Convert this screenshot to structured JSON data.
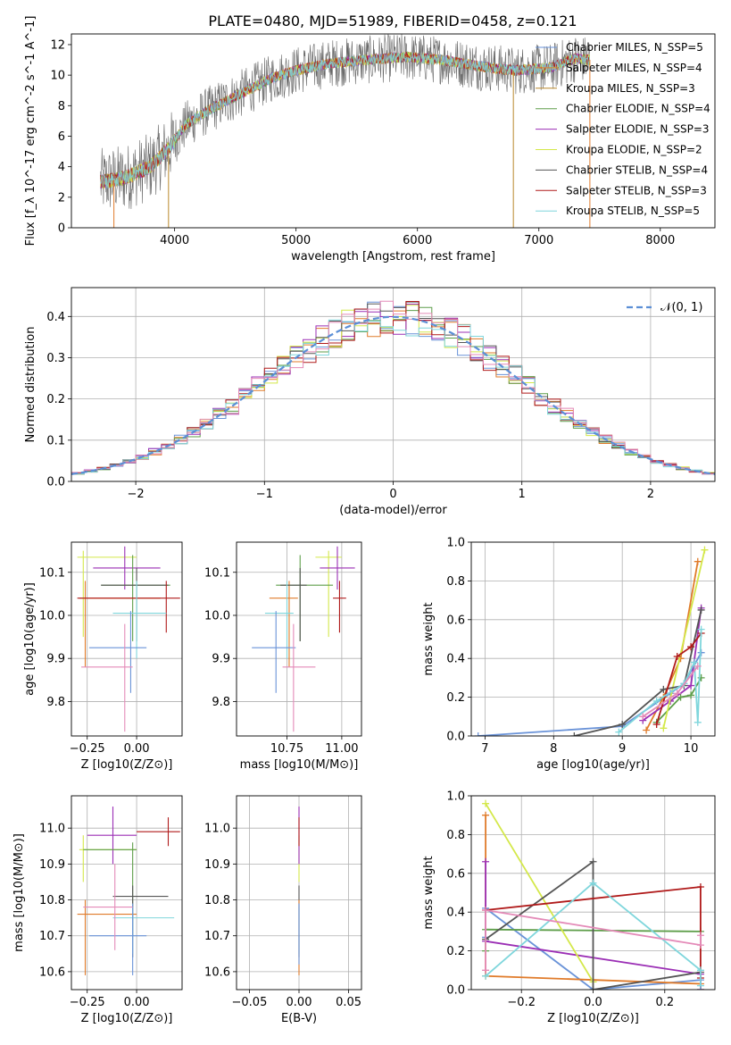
{
  "title": "PLATE=0480, MJD=51989, FIBERID=0458, z=0.121",
  "colors": {
    "chabrier_miles": "#6a93d8",
    "salpeter_miles": "#e07b2a",
    "kroupa_miles": "#b8872a",
    "chabrier_elodie": "#5e9e4a",
    "salpeter_elodie": "#9b2fb5",
    "kroupa_elodie": "#d4e84a",
    "chabrier_stelib": "#555555",
    "salpeter_stelib": "#b01a1a",
    "kroupa_stelib": "#7fd6dc",
    "pink": "#e48ab8",
    "normal": "#5b8fd6"
  },
  "chart_data": [
    {
      "type": "line",
      "title": "PLATE=0480, MJD=51989, FIBERID=0458, z=0.121",
      "xlabel": "wavelength [Angstrom, rest frame]",
      "ylabel": "Flux [f_λ 10^-17 erg cm^-2 s^-1 A^-1]",
      "xlim": [
        3150,
        8450
      ],
      "ylim": [
        0,
        12.7
      ],
      "xticks": [
        "4000",
        "5000",
        "6000",
        "7000",
        "8000"
      ],
      "yticks": [
        "0",
        "2",
        "4",
        "6",
        "8",
        "10",
        "12"
      ],
      "grid": false,
      "legend_position": "top-right",
      "legend": [
        "Chabrier MILES, N_SSP=5",
        "Salpeter MILES, N_SSP=4",
        "Kroupa MILES, N_SSP=3",
        "Chabrier ELODIE, N_SSP=4",
        "Salpeter ELODIE, N_SSP=3",
        "Kroupa ELODIE, N_SSP=2",
        "Chabrier STELIB, N_SSP=4",
        "Salpeter STELIB, N_SSP=3",
        "Kroupa STELIB, N_SSP=5"
      ],
      "continuum": {
        "x": [
          3400,
          3600,
          3800,
          3950,
          4100,
          4300,
          4500,
          4800,
          5000,
          5300,
          5600,
          5900,
          6200,
          6500,
          6800,
          7100,
          7300,
          7420
        ],
        "y": [
          3.0,
          3.3,
          4.0,
          5.2,
          6.8,
          7.8,
          8.6,
          9.8,
          10.3,
          10.8,
          11.0,
          11.2,
          11.0,
          10.6,
          10.3,
          10.5,
          11.1,
          11.0
        ]
      }
    },
    {
      "type": "histogram",
      "xlabel": "(data-model)/error",
      "ylabel": "Normed distribution",
      "xlim": [
        -2.5,
        2.5
      ],
      "ylim": [
        0,
        0.47
      ],
      "xticks": [
        "−2",
        "−1",
        "0",
        "1",
        "2"
      ],
      "yticks": [
        "0.0",
        "0.1",
        "0.2",
        "0.3",
        "0.4"
      ],
      "grid": true,
      "legend_position": "top-right",
      "legend": [
        "𝒩(0, 1)"
      ],
      "bin_width": 0.1
    },
    {
      "type": "scatter",
      "xlabel": "Z [log10(Z/Z⊙)]",
      "ylabel": "age  [log10(age/yr)]",
      "xlim": [
        -0.33,
        0.23
      ],
      "ylim": [
        9.72,
        10.17
      ],
      "xticks": [
        "−0.25",
        "0.00"
      ],
      "yticks": [
        "9.8",
        "9.9",
        "10.0",
        "10.1"
      ],
      "grid": true,
      "points": [
        {
          "x": -0.27,
          "y": 10.135,
          "xerr": 0.03,
          "yerr": 0.045,
          "color": "kroupa_elodie",
          "xlo": -0.3,
          "xhi": 0.0,
          "ylo": 9.95,
          "yhi": 10.15
        },
        {
          "x": -0.06,
          "y": 10.11,
          "xerr": 0.12,
          "yerr": 0.06,
          "color": "salpeter_elodie",
          "xlo": -0.22,
          "xhi": 0.12,
          "ylo": 10.06,
          "yhi": 10.16
        },
        {
          "x": -0.02,
          "y": 10.07,
          "xerr": 0.15,
          "yerr": 0.08,
          "color": "chabrier_elodie",
          "xlo": -0.18,
          "xhi": 0.17,
          "ylo": 9.94,
          "yhi": 10.14
        },
        {
          "x": -0.26,
          "y": 10.04,
          "xerr": 0.03,
          "yerr": 0.16,
          "color": "salpeter_miles",
          "xlo": -0.29,
          "xhi": 0.12,
          "ylo": 9.88,
          "yhi": 10.08
        },
        {
          "x": 0.0,
          "y": 10.07,
          "xerr": 0.15,
          "yerr": 0.1,
          "color": "chabrier_stelib",
          "xlo": -0.18,
          "xhi": 0.16,
          "ylo": 9.94,
          "yhi": 10.11
        },
        {
          "x": 0.15,
          "y": 10.04,
          "xerr": 0.07,
          "yerr": 0.04,
          "color": "salpeter_stelib",
          "xlo": -0.3,
          "xhi": 0.22,
          "ylo": 9.96,
          "yhi": 10.08
        },
        {
          "x": 0.0,
          "y": 10.005,
          "xerr": 0.15,
          "yerr": 0.08,
          "color": "kroupa_stelib",
          "xlo": -0.12,
          "xhi": 0.15,
          "ylo": 9.9,
          "yhi": 10.08
        },
        {
          "x": -0.03,
          "y": 9.925,
          "xerr": 0.13,
          "yerr": 0.1,
          "color": "chabrier_miles",
          "xlo": -0.24,
          "xhi": 0.05,
          "ylo": 9.82,
          "yhi": 10.01
        },
        {
          "x": -0.06,
          "y": 9.88,
          "xerr": 0.2,
          "yerr": 0.15,
          "color": "pink",
          "xlo": -0.28,
          "xhi": -0.02,
          "ylo": 9.73,
          "yhi": 9.98
        }
      ]
    },
    {
      "type": "scatter",
      "xlabel": "mass [log10(M/M⊙)]",
      "ylabel": "",
      "xlim": [
        10.52,
        11.09
      ],
      "ylim": [
        9.72,
        10.17
      ],
      "xticks": [
        "10.75",
        "11.00"
      ],
      "yticks": [
        "9.8",
        "9.9",
        "10.0",
        "10.1"
      ],
      "grid": true,
      "points": [
        {
          "x": 10.94,
          "y": 10.135,
          "color": "kroupa_elodie",
          "xlo": 10.88,
          "xhi": 11.0,
          "ylo": 9.95,
          "yhi": 10.15
        },
        {
          "x": 10.98,
          "y": 10.11,
          "color": "salpeter_elodie",
          "xlo": 10.9,
          "xhi": 11.06,
          "ylo": 10.06,
          "yhi": 10.16
        },
        {
          "x": 10.81,
          "y": 10.07,
          "color": "chabrier_elodie",
          "xlo": 10.7,
          "xhi": 10.96,
          "ylo": 9.94,
          "yhi": 10.14
        },
        {
          "x": 10.76,
          "y": 10.04,
          "color": "salpeter_miles",
          "xlo": 10.67,
          "xhi": 10.8,
          "ylo": 9.88,
          "yhi": 10.08
        },
        {
          "x": 10.81,
          "y": 10.07,
          "color": "chabrier_stelib",
          "xlo": 10.72,
          "xhi": 10.84,
          "ylo": 9.94,
          "yhi": 10.11
        },
        {
          "x": 10.99,
          "y": 10.04,
          "color": "salpeter_stelib",
          "xlo": 10.96,
          "xhi": 11.02,
          "ylo": 9.96,
          "yhi": 10.08
        },
        {
          "x": 10.75,
          "y": 10.005,
          "color": "kroupa_stelib",
          "xlo": 10.65,
          "xhi": 10.78,
          "ylo": 9.9,
          "yhi": 10.08
        },
        {
          "x": 10.7,
          "y": 9.925,
          "color": "chabrier_miles",
          "xlo": 10.59,
          "xhi": 10.79,
          "ylo": 9.82,
          "yhi": 10.01
        },
        {
          "x": 10.78,
          "y": 9.88,
          "color": "pink",
          "xlo": 10.73,
          "xhi": 10.88,
          "ylo": 9.73,
          "yhi": 9.98
        }
      ]
    },
    {
      "type": "line",
      "xlabel": "age  [log10(age/yr)]",
      "ylabel": "mass weight",
      "xlim": [
        6.8,
        10.35
      ],
      "ylim": [
        0,
        1.0
      ],
      "xticks": [
        "7",
        "8",
        "9",
        "10"
      ],
      "yticks": [
        "0.0",
        "0.2",
        "0.4",
        "0.6",
        "0.8",
        "1.0"
      ],
      "grid": true,
      "series": [
        {
          "color": "chabrier_miles",
          "x": [
            6.9,
            9.0,
            9.7,
            9.9,
            10.15
          ],
          "y": [
            0.0,
            0.05,
            0.22,
            0.27,
            0.43
          ]
        },
        {
          "color": "salpeter_miles",
          "x": [
            9.35,
            9.6,
            9.85,
            10.1
          ],
          "y": [
            0.03,
            0.2,
            0.4,
            0.9
          ]
        },
        {
          "color": "chabrier_elodie",
          "x": [
            9.5,
            9.85,
            10.0,
            10.15
          ],
          "y": [
            0.07,
            0.2,
            0.21,
            0.3
          ]
        },
        {
          "color": "salpeter_elodie",
          "x": [
            9.3,
            9.7,
            10.0,
            10.15
          ],
          "y": [
            0.08,
            0.18,
            0.26,
            0.66
          ]
        },
        {
          "color": "kroupa_elodie",
          "x": [
            9.6,
            10.2
          ],
          "y": [
            0.04,
            0.96
          ]
        },
        {
          "color": "chabrier_stelib",
          "x": [
            8.3,
            9.0,
            9.6,
            9.9,
            10.15
          ],
          "y": [
            0.0,
            0.06,
            0.24,
            0.26,
            0.65
          ]
        },
        {
          "color": "salpeter_stelib",
          "x": [
            9.5,
            9.8,
            10.0,
            10.15
          ],
          "y": [
            0.06,
            0.41,
            0.46,
            0.53
          ]
        },
        {
          "color": "kroupa_stelib",
          "x": [
            8.95,
            9.5,
            9.9,
            10.05,
            10.1,
            10.15
          ],
          "y": [
            0.02,
            0.18,
            0.27,
            0.38,
            0.07,
            0.55
          ]
        },
        {
          "color": "pink",
          "x": [
            9.3,
            9.8,
            10.1
          ],
          "y": [
            0.1,
            0.22,
            0.36
          ]
        }
      ]
    },
    {
      "type": "scatter",
      "xlabel": "Z [log10(Z/Z⊙)]",
      "ylabel": "mass [log10(M/M⊙)]",
      "xlim": [
        -0.33,
        0.23
      ],
      "ylim": [
        10.55,
        11.09
      ],
      "xticks": [
        "−0.25",
        "0.00"
      ],
      "yticks": [
        "10.6",
        "10.7",
        "10.8",
        "10.9",
        "11.0"
      ],
      "grid": true,
      "points": [
        {
          "x": -0.27,
          "y": 10.94,
          "color": "kroupa_elodie",
          "xlo": -0.29,
          "xhi": 0.0,
          "ylo": 10.85,
          "yhi": 10.98
        },
        {
          "x": -0.12,
          "y": 10.98,
          "color": "salpeter_elodie",
          "xlo": -0.25,
          "xhi": 0.0,
          "ylo": 10.9,
          "yhi": 11.06
        },
        {
          "x": -0.02,
          "y": 10.94,
          "color": "chabrier_elodie",
          "xlo": -0.27,
          "xhi": 0.0,
          "ylo": 10.7,
          "yhi": 10.96
        },
        {
          "x": -0.26,
          "y": 10.76,
          "color": "salpeter_miles",
          "xlo": -0.3,
          "xhi": 0.0,
          "ylo": 10.59,
          "yhi": 10.8
        },
        {
          "x": -0.02,
          "y": 10.81,
          "color": "chabrier_stelib",
          "xlo": -0.12,
          "xhi": 0.16,
          "ylo": 10.64,
          "yhi": 10.84
        },
        {
          "x": 0.16,
          "y": 10.99,
          "color": "salpeter_stelib",
          "xlo": 0.0,
          "xhi": 0.22,
          "ylo": 10.95,
          "yhi": 11.03
        },
        {
          "x": -0.02,
          "y": 10.75,
          "color": "kroupa_stelib",
          "xlo": -0.12,
          "xhi": 0.19,
          "ylo": 10.65,
          "yhi": 10.78
        },
        {
          "x": -0.02,
          "y": 10.7,
          "color": "chabrier_miles",
          "xlo": -0.24,
          "xhi": 0.05,
          "ylo": 10.59,
          "yhi": 10.79
        },
        {
          "x": -0.11,
          "y": 10.78,
          "color": "pink",
          "xlo": -0.27,
          "xhi": -0.02,
          "ylo": 10.66,
          "yhi": 10.9
        }
      ]
    },
    {
      "type": "scatter",
      "xlabel": "E(B-V)",
      "ylabel": "",
      "xlim": [
        -0.063,
        0.063
      ],
      "ylim": [
        10.55,
        11.09
      ],
      "xticks": [
        "−0.05",
        "0.00",
        "0.05"
      ],
      "yticks": [
        "10.6",
        "10.7",
        "10.8",
        "10.9",
        "11.0"
      ],
      "grid": true,
      "points": [
        {
          "x": 0.0,
          "y": 10.94,
          "color": "kroupa_elodie",
          "ylo": 10.85,
          "yhi": 10.98
        },
        {
          "x": 0.0,
          "y": 10.98,
          "color": "salpeter_elodie",
          "ylo": 10.9,
          "yhi": 11.06
        },
        {
          "x": 0.0,
          "y": 10.81,
          "color": "chabrier_stelib",
          "ylo": 10.64,
          "yhi": 10.84
        },
        {
          "x": 0.0,
          "y": 10.99,
          "color": "salpeter_stelib",
          "ylo": 10.95,
          "yhi": 11.03
        },
        {
          "x": 0.0,
          "y": 10.75,
          "color": "kroupa_stelib",
          "ylo": 10.65,
          "yhi": 10.78
        },
        {
          "x": 0.0,
          "y": 10.76,
          "color": "salpeter_miles",
          "ylo": 10.59,
          "yhi": 10.8
        },
        {
          "x": 0.0,
          "y": 10.7,
          "color": "chabrier_miles",
          "ylo": 10.62,
          "yhi": 10.79
        }
      ]
    },
    {
      "type": "line",
      "xlabel": "Z [log10(Z/Z⊙)]",
      "ylabel": "mass weight",
      "xlim": [
        -0.34,
        0.34
      ],
      "ylim": [
        0,
        1.0
      ],
      "xticks": [
        "−0.2",
        "0.0",
        "0.2"
      ],
      "yticks": [
        "0.0",
        "0.2",
        "0.4",
        "0.6",
        "0.8",
        "1.0"
      ],
      "grid": true,
      "series": [
        {
          "color": "chabrier_miles",
          "x": [
            -0.3,
            -0.3,
            0.0,
            0.3,
            0.3
          ],
          "y": [
            0.27,
            0.42,
            0.0,
            0.05,
            0.0
          ]
        },
        {
          "color": "salpeter_miles",
          "x": [
            -0.3,
            -0.3,
            0.3,
            0.3
          ],
          "y": [
            0.9,
            0.07,
            0.03,
            0.0
          ]
        },
        {
          "color": "chabrier_elodie",
          "x": [
            -0.3,
            -0.3,
            0.3
          ],
          "y": [
            0.2,
            0.31,
            0.3
          ]
        },
        {
          "color": "salpeter_elodie",
          "x": [
            -0.3,
            -0.3,
            0.3,
            0.3
          ],
          "y": [
            0.66,
            0.25,
            0.08,
            0.0
          ]
        },
        {
          "color": "kroupa_elodie",
          "x": [
            -0.3,
            0.0
          ],
          "y": [
            0.96,
            0.04
          ]
        },
        {
          "color": "chabrier_stelib",
          "x": [
            -0.3,
            0.0,
            0.0,
            0.3
          ],
          "y": [
            0.26,
            0.66,
            0.0,
            0.09
          ]
        },
        {
          "color": "salpeter_stelib",
          "x": [
            -0.3,
            0.3,
            0.3
          ],
          "y": [
            0.41,
            0.53,
            0.06
          ]
        },
        {
          "color": "kroupa_stelib",
          "x": [
            -0.3,
            0.0,
            0.3,
            0.3
          ],
          "y": [
            0.07,
            0.55,
            0.1,
            0.02
          ]
        },
        {
          "color": "pink",
          "x": [
            -0.3,
            -0.3,
            0.3,
            0.3
          ],
          "y": [
            0.1,
            0.41,
            0.23,
            0.28
          ]
        }
      ]
    }
  ]
}
